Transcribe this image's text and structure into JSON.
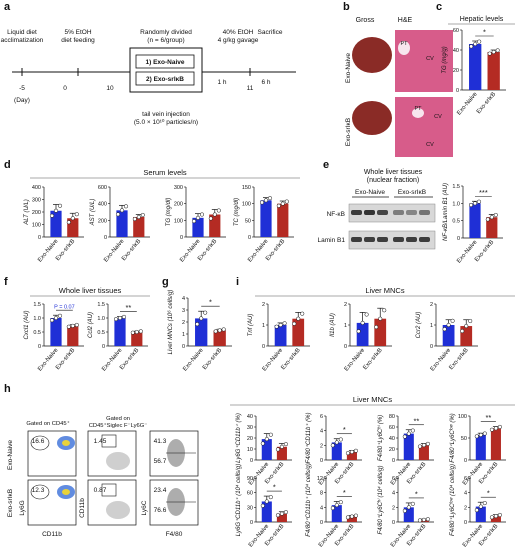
{
  "panel_letters": [
    "a",
    "b",
    "c",
    "d",
    "e",
    "f",
    "g",
    "h",
    "i"
  ],
  "colors": {
    "naive": "#1f2fd6",
    "srikb": "#b42b23",
    "tissue": "#d75c8a",
    "gross": "#8a2b26"
  },
  "timeline": {
    "steps": [
      {
        "label": "Liquid diet",
        "label2": "acclimatization"
      },
      {
        "label": "5% EtOH",
        "label2": "diet feeding"
      },
      {
        "label": "Randomly divided",
        "label2": "(n = 6/group)"
      },
      {
        "label": "40% EtOH",
        "label2": "4 g/kg gavage"
      },
      {
        "label": "Sacrifice",
        "label2": ""
      }
    ],
    "box_items": [
      "1) Exo-Naive",
      "2) Exo-srIκB"
    ],
    "injection": "tail vein injection",
    "injection2": "(5.0 × 10¹⁰ particles/n)",
    "durations": [
      "1 h",
      "6 h"
    ],
    "days": [
      "-5",
      "0",
      "10",
      "11"
    ],
    "day_label": "(Day)"
  },
  "panel_b": {
    "gross": "Gross",
    "he": "H&E",
    "rows": [
      "Exo-Naive",
      "Exo-srIκB"
    ],
    "labels_top": [
      "PT",
      "CV"
    ],
    "labels_bottom": [
      "PT",
      "CV",
      "CV"
    ]
  },
  "groups": [
    "Exo-Naive",
    "Exo-srIκB"
  ],
  "headers": {
    "hepatic": "Hepatic levels",
    "serum": "Serum levels",
    "whole_liver": "Whole liver tissues",
    "liver_mncs_i": "Liver MNCs",
    "liver_mncs_h": "Liver MNCs"
  },
  "panel_e": {
    "title": "Whole liver tissues",
    "subtitle": "(nuclear fraction)",
    "bands": [
      "NF-κB",
      "Lamin B1"
    ]
  },
  "panel_h": {
    "gate1": "Gated on CD45⁺",
    "gate2": "Gated on",
    "gate2b": "CD45⁺Siglec F⁻Ly6G⁻",
    "rows": [
      "Exo-Naive",
      "Exo-srIκB"
    ],
    "values": {
      "top": [
        "16.6",
        "1.45",
        "41.3",
        "56.7"
      ],
      "bottom": [
        "12.3",
        "0.87",
        "23.4",
        "76.6"
      ]
    },
    "axes": {
      "x1": "CD11b",
      "y1": "Ly6G",
      "x2": "F4/80",
      "y2": "CD11b",
      "y3": "Ly6C"
    }
  },
  "chart_data": [
    {
      "type": "bar",
      "id": "c",
      "ylabel": "TG (mg/g)",
      "ylim": [
        0,
        60
      ],
      "ticks": [
        0,
        20,
        40,
        60
      ],
      "values": [
        46,
        38
      ],
      "errors": [
        3,
        2
      ],
      "sig": "*"
    },
    {
      "type": "bar",
      "id": "d1",
      "ylabel": "ALT (U/L)",
      "ylim": [
        0,
        400
      ],
      "ticks": [
        0,
        100,
        200,
        300,
        400
      ],
      "values": [
        210,
        150
      ],
      "errors": [
        50,
        40
      ],
      "sig": ""
    },
    {
      "type": "bar",
      "id": "d2",
      "ylabel": "AST (U/L)",
      "ylim": [
        0,
        600
      ],
      "ticks": [
        0,
        200,
        400,
        600
      ],
      "values": [
        320,
        240
      ],
      "errors": [
        60,
        30
      ],
      "sig": ""
    },
    {
      "type": "bar",
      "id": "d3",
      "ylabel": "TG (mg/dl)",
      "ylim": [
        0,
        300
      ],
      "ticks": [
        0,
        100,
        200,
        300
      ],
      "values": [
        115,
        135
      ],
      "errors": [
        25,
        30
      ],
      "sig": ""
    },
    {
      "type": "bar",
      "id": "d4",
      "ylabel": "TC (mg/dl)",
      "ylim": [
        0,
        150
      ],
      "ticks": [
        0,
        50,
        100,
        150
      ],
      "values": [
        110,
        100
      ],
      "errors": [
        8,
        8
      ],
      "sig": ""
    },
    {
      "type": "bar",
      "id": "e",
      "ylabel": "NF-κB/Lamin B1 (AU)",
      "ylim": [
        0,
        1.5
      ],
      "ticks": [
        0,
        0.5,
        1.0,
        1.5
      ],
      "tick_labels": [
        "0",
        "0.5",
        "1.0",
        "1.5"
      ],
      "values": [
        1.0,
        0.6
      ],
      "errors": [
        0.06,
        0.08
      ],
      "sig": "***"
    },
    {
      "type": "bar",
      "id": "f1",
      "ylabel": "Cxcl1 (AU)",
      "ylim": [
        0,
        1.5
      ],
      "ticks": [
        0,
        0.5,
        1.0,
        1.5
      ],
      "tick_labels": [
        "0",
        "0.5",
        "1.0",
        "1.5"
      ],
      "values": [
        1.0,
        0.72
      ],
      "errors": [
        0.1,
        0.04
      ],
      "sig": "P = 0.07"
    },
    {
      "type": "bar",
      "id": "f2",
      "ylabel": "Ccl2 (AU)",
      "ylim": [
        0,
        1.5
      ],
      "ticks": [
        0,
        0.5,
        1.0,
        1.5
      ],
      "tick_labels": [
        "0",
        "0.5",
        "1.0",
        "1.5"
      ],
      "values": [
        1.0,
        0.5
      ],
      "errors": [
        0.05,
        0.03
      ],
      "sig": "**"
    },
    {
      "type": "bar",
      "id": "g",
      "ylabel": "Liver MNCs (10⁶ cells/g)",
      "ylim": [
        0,
        4
      ],
      "ticks": [
        0,
        1,
        2,
        3,
        4
      ],
      "values": [
        2.3,
        1.3
      ],
      "errors": [
        0.6,
        0.1
      ],
      "sig": "*"
    },
    {
      "type": "bar",
      "id": "i1",
      "ylabel": "Tnf (AU)",
      "ylim": [
        0,
        2
      ],
      "ticks": [
        0,
        1,
        2
      ],
      "values": [
        1.0,
        1.3
      ],
      "errors": [
        0.1,
        0.3
      ],
      "sig": ""
    },
    {
      "type": "bar",
      "id": "i2",
      "ylabel": "Il1b (AU)",
      "ylim": [
        0,
        2
      ],
      "ticks": [
        0,
        1,
        2
      ],
      "values": [
        1.1,
        1.3
      ],
      "errors": [
        0.5,
        0.5
      ],
      "sig": ""
    },
    {
      "type": "bar",
      "id": "i3",
      "ylabel": "Ccr2 (AU)",
      "ylim": [
        0,
        2
      ],
      "ticks": [
        0,
        1,
        2
      ],
      "values": [
        1.0,
        0.95
      ],
      "errors": [
        0.25,
        0.3
      ],
      "sig": ""
    },
    {
      "type": "bar",
      "id": "h1",
      "ylabel": "Ly6G⁺CD11b⁺ (%)",
      "ylim": [
        0,
        40
      ],
      "ticks": [
        0,
        10,
        20,
        30,
        40
      ],
      "values": [
        19,
        12
      ],
      "errors": [
        5,
        3
      ],
      "sig": ""
    },
    {
      "type": "bar",
      "id": "h2",
      "ylabel": "F4/80⁺CD11b⁺ (%)",
      "ylim": [
        0,
        6
      ],
      "ticks": [
        0,
        2,
        4,
        6
      ],
      "values": [
        2.4,
        1.1
      ],
      "errors": [
        0.5,
        0.2
      ],
      "sig": "*"
    },
    {
      "type": "bar",
      "id": "h3",
      "ylabel": "F4/80⁺Ly6Cʰⁱ (%)",
      "ylim": [
        0,
        80
      ],
      "ticks": [
        0,
        20,
        40,
        60,
        80
      ],
      "values": [
        48,
        27
      ],
      "errors": [
        7,
        3
      ],
      "sig": "**"
    },
    {
      "type": "bar",
      "id": "h4",
      "ylabel": "F4/80⁺Ly6Cˡᵒʷ (%)",
      "ylim": [
        0,
        100
      ],
      "ticks": [
        0,
        50,
        100
      ],
      "values": [
        57,
        72
      ],
      "errors": [
        4,
        4
      ],
      "sig": "**"
    },
    {
      "type": "bar",
      "id": "h5",
      "ylabel": "Ly6G⁺CD11b⁺ (10⁴ cells/g)",
      "ylim": [
        0,
        90
      ],
      "ticks": [
        0,
        30,
        60,
        90
      ],
      "values": [
        42,
        17
      ],
      "errors": [
        11,
        4
      ],
      "sig": "*"
    },
    {
      "type": "bar",
      "id": "h6",
      "ylabel": "F4/80⁺CD11b⁺ (10⁴ cells/g)",
      "ylim": [
        0,
        12
      ],
      "ticks": [
        0,
        4,
        8,
        12
      ],
      "values": [
        4.6,
        1.5
      ],
      "errors": [
        1.0,
        0.3
      ],
      "sig": "*"
    },
    {
      "type": "bar",
      "id": "h7",
      "ylabel": "F4/80⁺Ly6Cʰⁱ (10⁴ cells/g)",
      "ylim": [
        0,
        6
      ],
      "ticks": [
        0,
        2,
        4,
        6
      ],
      "values": [
        2.0,
        0.3
      ],
      "errors": [
        0.6,
        0.1
      ],
      "sig": "*"
    },
    {
      "type": "bar",
      "id": "h8",
      "ylabel": "F4/80⁺Ly6Cˡᵒʷ (10⁴ cells/g)",
      "ylim": [
        0,
        6
      ],
      "ticks": [
        0,
        2,
        4,
        6
      ],
      "values": [
        2.1,
        0.8
      ],
      "errors": [
        0.6,
        0.2
      ],
      "sig": "*"
    }
  ]
}
